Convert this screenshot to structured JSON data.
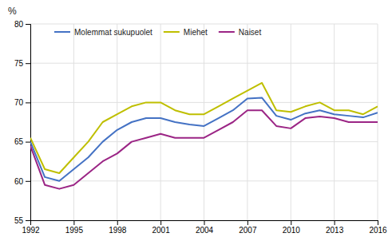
{
  "chart_data": {
    "type": "line",
    "ylabel": "%",
    "x": [
      1992,
      1993,
      1994,
      1995,
      1996,
      1997,
      1998,
      1999,
      2000,
      2001,
      2002,
      2003,
      2004,
      2005,
      2006,
      2007,
      2008,
      2009,
      2010,
      2011,
      2012,
      2013,
      2014,
      2015,
      2016
    ],
    "series": [
      {
        "name": "Molemmat sukupuolet",
        "color": "#4472C4",
        "values": [
          65.0,
          60.5,
          60.0,
          61.5,
          63.0,
          65.0,
          66.5,
          67.5,
          68.0,
          68.0,
          67.5,
          67.2,
          67.0,
          68.0,
          69.0,
          70.5,
          70.6,
          68.3,
          67.8,
          68.6,
          69.0,
          68.5,
          68.3,
          68.1,
          68.7
        ]
      },
      {
        "name": "Miehet",
        "color": "#BFBF00",
        "values": [
          65.5,
          61.5,
          61.0,
          63.0,
          65.0,
          67.5,
          68.5,
          69.5,
          70.0,
          70.0,
          69.0,
          68.5,
          68.5,
          69.5,
          70.5,
          71.5,
          72.5,
          69.0,
          68.8,
          69.5,
          70.0,
          69.0,
          69.0,
          68.5,
          69.5
        ]
      },
      {
        "name": "Naiset",
        "color": "#9B2585",
        "values": [
          64.5,
          59.5,
          59.0,
          59.5,
          61.0,
          62.5,
          63.5,
          65.0,
          65.5,
          66.0,
          65.5,
          65.5,
          65.5,
          66.5,
          67.5,
          69.0,
          69.0,
          67.0,
          66.7,
          68.0,
          68.2,
          68.0,
          67.5,
          67.5,
          67.5
        ]
      }
    ],
    "xlim": [
      1992,
      2016
    ],
    "xticks": [
      1992,
      1995,
      1998,
      2001,
      2004,
      2007,
      2010,
      2013,
      2016
    ],
    "ylim": [
      55,
      80
    ],
    "yticks": [
      55,
      60,
      65,
      70,
      75,
      80
    ],
    "grid": true,
    "legend": "upper left"
  }
}
